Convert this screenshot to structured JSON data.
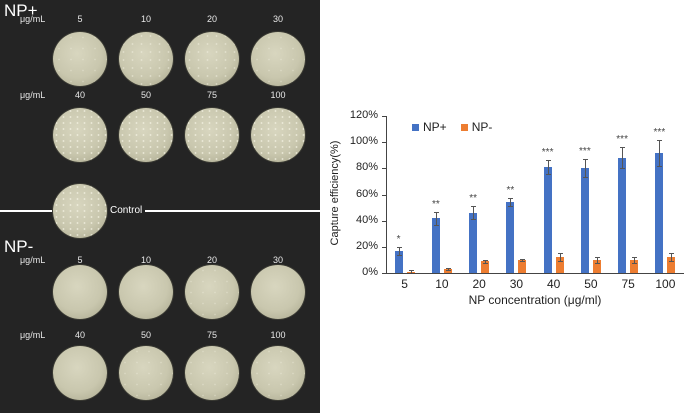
{
  "figure": {
    "panel": {
      "np_plus_label": "NP+",
      "np_minus_label": "NP-",
      "unit": "μg/mL",
      "control_label": "Control",
      "np_plus_rows": [
        {
          "concentrations": [
            "5",
            "10",
            "20",
            "30"
          ],
          "density": [
            "sparse",
            "medium",
            "medium",
            "sparse"
          ]
        },
        {
          "concentrations": [
            "40",
            "50",
            "75",
            "100"
          ],
          "density": [
            "dense",
            "dense",
            "dense",
            "dense"
          ]
        }
      ],
      "np_minus_rows": [
        {
          "concentrations": [
            "5",
            "10",
            "20",
            "30"
          ],
          "density": [
            "none",
            "none",
            "sparse",
            "none"
          ]
        },
        {
          "concentrations": [
            "40",
            "50",
            "75",
            "100"
          ],
          "density": [
            "none",
            "sparse",
            "sparse",
            "sparse"
          ]
        }
      ]
    }
  },
  "chart_data": {
    "type": "bar",
    "title": "",
    "xlabel": "NP concentration (μg/ml)",
    "ylabel": "Capture efficiency(%)",
    "ylim": [
      0,
      120
    ],
    "yticks": [
      "0%",
      "20%",
      "40%",
      "60%",
      "80%",
      "100%",
      "120%"
    ],
    "categories": [
      "5",
      "10",
      "20",
      "30",
      "40",
      "50",
      "75",
      "100"
    ],
    "legend_position": "top-left",
    "grid": false,
    "series": [
      {
        "name": "NP+",
        "color": "#4472C4",
        "values": [
          17,
          42,
          46,
          54,
          81,
          80,
          88,
          92
        ],
        "errors": [
          3,
          5,
          5,
          3,
          5,
          7,
          8,
          10
        ]
      },
      {
        "name": "NP-",
        "color": "#ED7D31",
        "values": [
          1,
          3,
          9,
          10,
          12,
          10,
          10,
          12
        ],
        "errors": [
          1,
          1,
          1,
          1,
          3,
          2,
          2,
          3
        ]
      }
    ],
    "annotations": [
      "*",
      "**",
      "**",
      "**",
      "***",
      "***",
      "***",
      "***"
    ]
  }
}
